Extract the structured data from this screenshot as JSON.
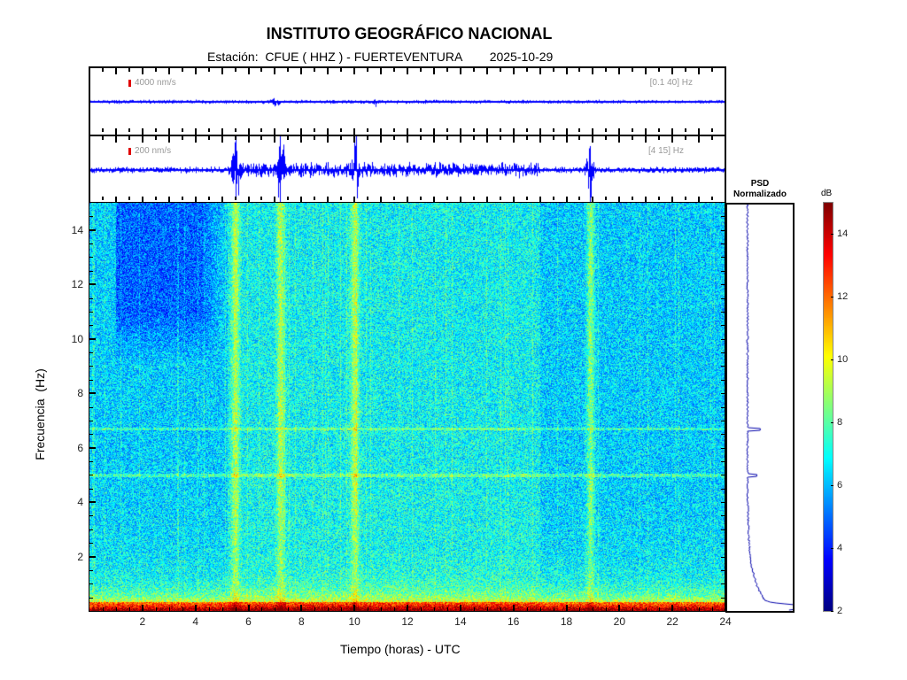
{
  "header": {
    "title": "INSTITUTO GEOGRÁFICO NACIONAL",
    "station_label": "Estación:",
    "station": "CFUE ( HHZ ) - FUERTEVENTURA",
    "date": "2025-10-29"
  },
  "traces": [
    {
      "scale": "4000 nm/s",
      "band": "[0.1 40] Hz"
    },
    {
      "scale": "200 nm/s",
      "band": "[4 15] Hz"
    }
  ],
  "psd": {
    "title_line1": "PSD",
    "title_line2": "Normalizado"
  },
  "colors": {
    "scale_marker": "#e00000",
    "trace": "#0000ff",
    "psd_line": "#0000aa"
  },
  "chart_data": {
    "type": "heatmap",
    "title": "INSTITUTO GEOGRÁFICO NACIONAL",
    "xlabel": "Tiempo (horas) - UTC",
    "ylabel": "Frecuencia  (Hz)",
    "xlim": [
      0,
      24
    ],
    "ylim": [
      0,
      15
    ],
    "xticks": [
      2,
      4,
      6,
      8,
      10,
      12,
      14,
      16,
      18,
      20,
      22,
      24
    ],
    "yticks": [
      2,
      4,
      6,
      8,
      10,
      12,
      14
    ],
    "colorbar": {
      "label": "dB",
      "range": [
        2,
        15
      ],
      "ticks": [
        2,
        4,
        6,
        8,
        10,
        12,
        14
      ],
      "colormap": "jet"
    },
    "events_hours": [
      5.5,
      7.2,
      10.0,
      18.9
    ],
    "spectral_lines_hz": [
      5.0,
      6.7
    ]
  }
}
